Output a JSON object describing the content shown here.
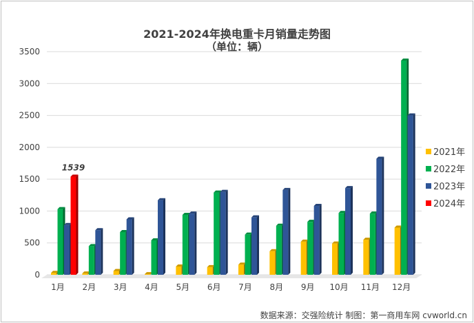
{
  "chart_data": {
    "type": "bar",
    "title": "2021-2024年换电重卡月销量走势图",
    "subtitle": "（单位：辆）",
    "categories": [
      "1月",
      "2月",
      "3月",
      "4月",
      "5月",
      "6月",
      "7月",
      "8月",
      "9月",
      "10月",
      "11月",
      "12月"
    ],
    "series": [
      {
        "name": "2021年",
        "color": "#FFC000",
        "values": [
          30,
          20,
          60,
          10,
          130,
          120,
          160,
          370,
          520,
          490,
          550,
          740
        ]
      },
      {
        "name": "2022年",
        "color": "#00B050",
        "values": [
          1030,
          450,
          670,
          540,
          940,
          1290,
          630,
          770,
          830,
          970,
          960,
          3360
        ]
      },
      {
        "name": "2023年",
        "color": "#2F5597",
        "values": [
          780,
          700,
          870,
          1170,
          960,
          1300,
          900,
          1330,
          1080,
          1360,
          1820,
          2500
        ]
      },
      {
        "name": "2024年",
        "color": "#FF0000",
        "values": [
          1539,
          null,
          null,
          null,
          null,
          null,
          null,
          null,
          null,
          null,
          null,
          null
        ]
      }
    ],
    "data_labels": [
      {
        "series": "2024年",
        "category": "1月",
        "text": "1539"
      }
    ],
    "ylim": [
      0,
      3500
    ],
    "yticks": [
      0,
      500,
      1000,
      1500,
      2000,
      2500,
      3000,
      3500
    ],
    "grid": true,
    "legend_position": "right",
    "xlabel": "",
    "ylabel": ""
  },
  "source_text": "数据来源：交强险统计 制图：第一商用车网 cvworld.cn"
}
